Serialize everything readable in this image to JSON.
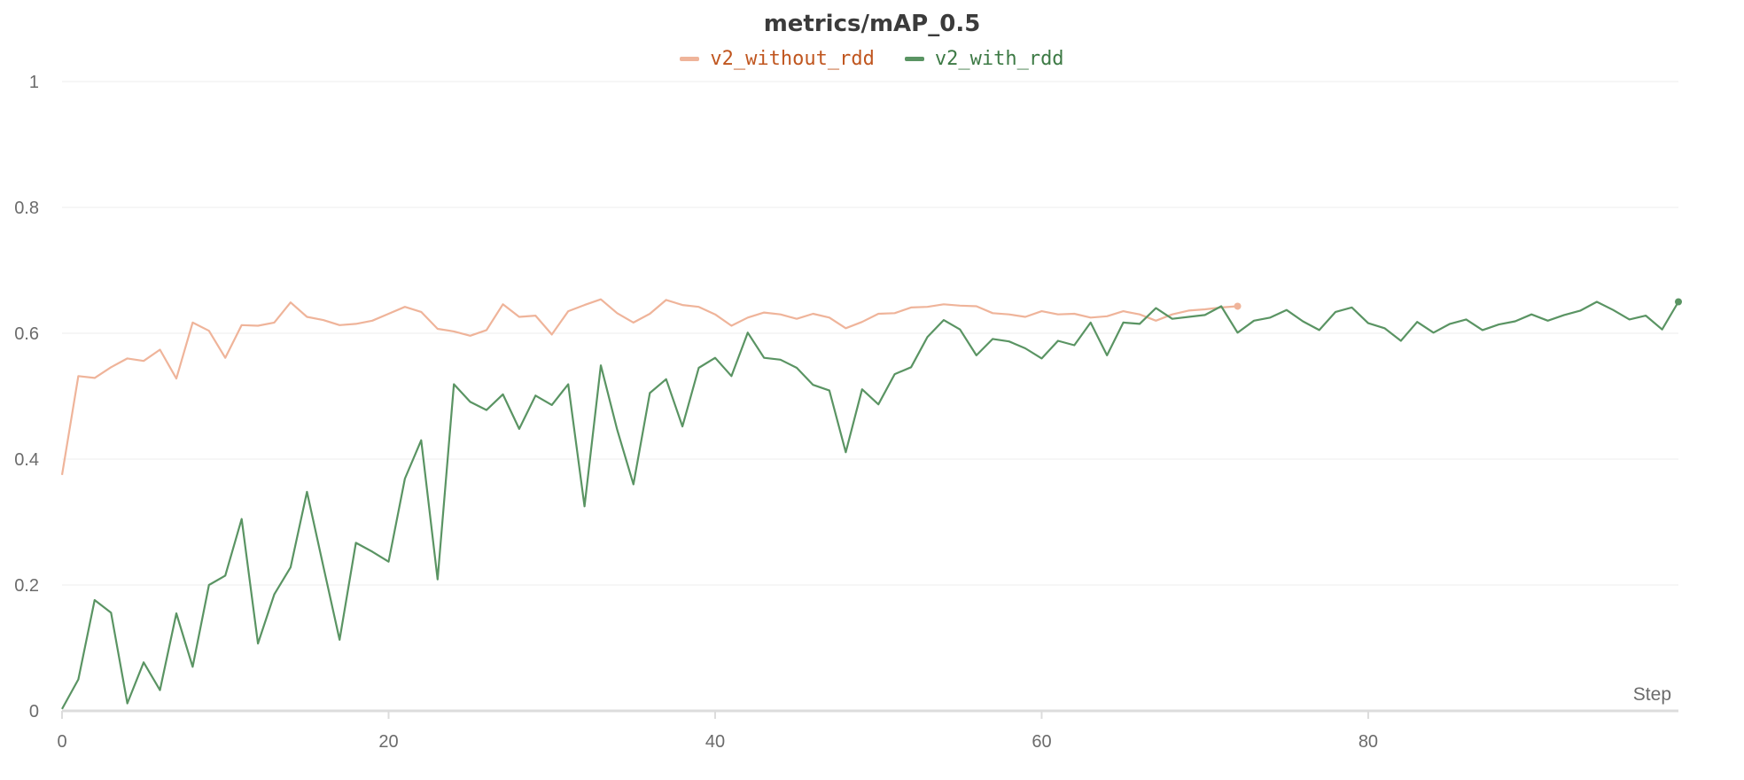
{
  "chart_data": {
    "type": "line",
    "title": "metrics/mAP_0.5",
    "xlabel": "Step",
    "ylabel": "",
    "xlim": [
      0,
      99
    ],
    "ylim": [
      0,
      1
    ],
    "x_ticks": [
      0,
      20,
      40,
      60,
      80
    ],
    "y_ticks": [
      0,
      0.2,
      0.4,
      0.6,
      0.8,
      1
    ],
    "x_tick_labels": [
      "0",
      "20",
      "40",
      "60",
      "80"
    ],
    "y_tick_labels": [
      "0",
      "0.2",
      "0.4",
      "0.6",
      "0.8",
      "1"
    ],
    "grid": true,
    "legend_position": "top-center",
    "series": [
      {
        "name": "v2_without_rdd",
        "color": "#efb49a",
        "legend_text_color": "#c0561f",
        "x": [
          0,
          1,
          2,
          3,
          4,
          5,
          6,
          7,
          8,
          9,
          10,
          11,
          12,
          13,
          14,
          15,
          16,
          17,
          18,
          19,
          20,
          21,
          22,
          23,
          24,
          25,
          26,
          27,
          28,
          29,
          30,
          31,
          32,
          33,
          34,
          35,
          36,
          37,
          38,
          39,
          40,
          41,
          42,
          43,
          44,
          45,
          46,
          47,
          48,
          49,
          50,
          51,
          52,
          53,
          54,
          55,
          56,
          57,
          58,
          59,
          60,
          61,
          62,
          63,
          64,
          65,
          66,
          67,
          68,
          69,
          70,
          71,
          72
        ],
        "values": [
          0.375,
          0.532,
          0.529,
          0.546,
          0.56,
          0.556,
          0.574,
          0.528,
          0.617,
          0.604,
          0.561,
          0.613,
          0.612,
          0.617,
          0.649,
          0.626,
          0.621,
          0.613,
          0.615,
          0.62,
          0.631,
          0.642,
          0.634,
          0.607,
          0.603,
          0.596,
          0.605,
          0.646,
          0.626,
          0.628,
          0.598,
          0.635,
          0.645,
          0.654,
          0.632,
          0.617,
          0.631,
          0.653,
          0.645,
          0.642,
          0.63,
          0.612,
          0.625,
          0.633,
          0.63,
          0.623,
          0.631,
          0.625,
          0.608,
          0.618,
          0.631,
          0.632,
          0.641,
          0.642,
          0.646,
          0.644,
          0.643,
          0.632,
          0.63,
          0.626,
          0.635,
          0.63,
          0.631,
          0.625,
          0.627,
          0.635,
          0.63,
          0.62,
          0.63,
          0.636,
          0.638,
          0.641,
          0.643
        ]
      },
      {
        "name": "v2_with_rdd",
        "color": "#5a9463",
        "legend_text_color": "#3d7a45",
        "x": [
          0,
          1,
          2,
          3,
          4,
          5,
          6,
          7,
          8,
          9,
          10,
          11,
          12,
          13,
          14,
          15,
          16,
          17,
          18,
          19,
          20,
          21,
          22,
          23,
          24,
          25,
          26,
          27,
          28,
          29,
          30,
          31,
          32,
          33,
          34,
          35,
          36,
          37,
          38,
          39,
          40,
          41,
          42,
          43,
          44,
          45,
          46,
          47,
          48,
          49,
          50,
          51,
          52,
          53,
          54,
          55,
          56,
          57,
          58,
          59,
          60,
          61,
          62,
          63,
          64,
          65,
          66,
          67,
          68,
          69,
          70,
          71,
          72,
          73,
          74,
          75,
          76,
          77,
          78,
          79,
          80,
          81,
          82,
          83,
          84,
          85,
          86,
          87,
          88,
          89,
          90,
          91,
          92,
          93,
          94,
          95,
          96,
          97,
          98,
          99
        ],
        "values": [
          0.003,
          0.05,
          0.176,
          0.156,
          0.012,
          0.077,
          0.033,
          0.155,
          0.07,
          0.2,
          0.215,
          0.305,
          0.107,
          0.185,
          0.228,
          0.348,
          0.23,
          0.113,
          0.267,
          0.253,
          0.237,
          0.369,
          0.43,
          0.209,
          0.519,
          0.491,
          0.478,
          0.503,
          0.448,
          0.501,
          0.486,
          0.519,
          0.325,
          0.549,
          0.447,
          0.36,
          0.505,
          0.527,
          0.452,
          0.545,
          0.561,
          0.532,
          0.601,
          0.561,
          0.558,
          0.545,
          0.518,
          0.509,
          0.411,
          0.511,
          0.487,
          0.535,
          0.546,
          0.594,
          0.621,
          0.606,
          0.565,
          0.591,
          0.587,
          0.576,
          0.56,
          0.588,
          0.581,
          0.617,
          0.565,
          0.617,
          0.615,
          0.64,
          0.623,
          0.626,
          0.629,
          0.643,
          0.601,
          0.62,
          0.625,
          0.637,
          0.619,
          0.605,
          0.634,
          0.641,
          0.616,
          0.608,
          0.588,
          0.618,
          0.601,
          0.615,
          0.622,
          0.605,
          0.614,
          0.619,
          0.63,
          0.62,
          0.629,
          0.636,
          0.65,
          0.637,
          0.622,
          0.628,
          0.606,
          0.65
        ]
      }
    ]
  }
}
